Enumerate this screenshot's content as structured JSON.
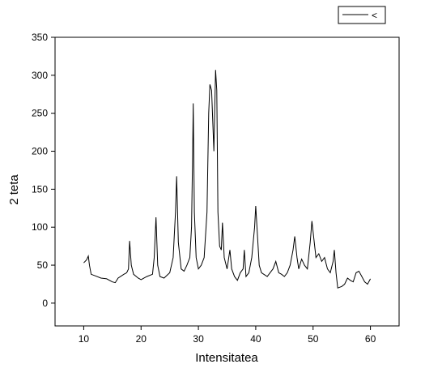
{
  "chart_data": {
    "type": "line",
    "x_label": "Intensitatea",
    "y_label": "2 teta",
    "xlim": [
      5,
      65
    ],
    "ylim": [
      -30,
      350
    ],
    "xticks": [
      10,
      20,
      30,
      40,
      50,
      60
    ],
    "yticks": [
      0,
      50,
      100,
      150,
      200,
      250,
      300,
      350
    ],
    "legend": "top-right",
    "x": [
      10,
      10.5,
      10.8,
      11,
      11.3,
      12,
      13,
      14,
      15,
      15.5,
      16,
      17,
      17.5,
      17.8,
      18,
      18.3,
      18.7,
      19.5,
      20,
      21,
      22,
      22.3,
      22.6,
      22.9,
      23.3,
      24,
      25,
      25.6,
      26,
      26.2,
      26.5,
      27,
      27.5,
      28,
      28.5,
      28.8,
      29,
      29.1,
      29.3,
      29.6,
      30,
      30.5,
      31,
      31.5,
      31.8,
      32,
      32.3,
      32.5,
      32.7,
      33,
      33.2,
      33.4,
      33.7,
      34,
      34.2,
      34.5,
      35,
      35.5,
      35.8,
      36.3,
      36.8,
      37.3,
      37.8,
      38,
      38.3,
      38.8,
      39.3,
      39.8,
      40,
      40.3,
      40.6,
      41,
      42,
      42.5,
      43,
      43.5,
      44,
      44.5,
      45,
      45.5,
      46,
      46.5,
      46.8,
      47.2,
      47.5,
      48,
      48.5,
      49,
      49.5,
      49.8,
      50.2,
      50.5,
      51,
      51.5,
      52,
      52.5,
      53,
      53.5,
      53.7,
      54,
      54.3,
      55,
      55.5,
      56,
      56.5,
      57,
      57.5,
      58,
      58.5,
      59,
      59.5,
      60
    ],
    "series": [
      {
        "name": "<",
        "color": "#000000",
        "values": [
          53,
          57,
          62,
          50,
          38,
          36,
          33,
          32,
          28,
          27,
          33,
          38,
          40,
          45,
          82,
          50,
          38,
          33,
          31,
          35,
          38,
          60,
          113,
          50,
          35,
          33,
          40,
          60,
          120,
          167,
          80,
          45,
          42,
          50,
          60,
          100,
          200,
          263,
          120,
          60,
          45,
          50,
          60,
          120,
          250,
          288,
          280,
          240,
          200,
          307,
          280,
          120,
          75,
          70,
          106,
          60,
          45,
          70,
          45,
          35,
          30,
          40,
          45,
          70,
          35,
          40,
          60,
          100,
          128,
          90,
          50,
          40,
          35,
          40,
          45,
          55,
          40,
          38,
          35,
          40,
          50,
          70,
          88,
          60,
          45,
          58,
          50,
          45,
          80,
          108,
          80,
          60,
          65,
          55,
          60,
          45,
          40,
          55,
          70,
          40,
          20,
          22,
          25,
          33,
          30,
          28,
          40,
          42,
          35,
          28,
          25,
          32
        ]
      }
    ]
  }
}
